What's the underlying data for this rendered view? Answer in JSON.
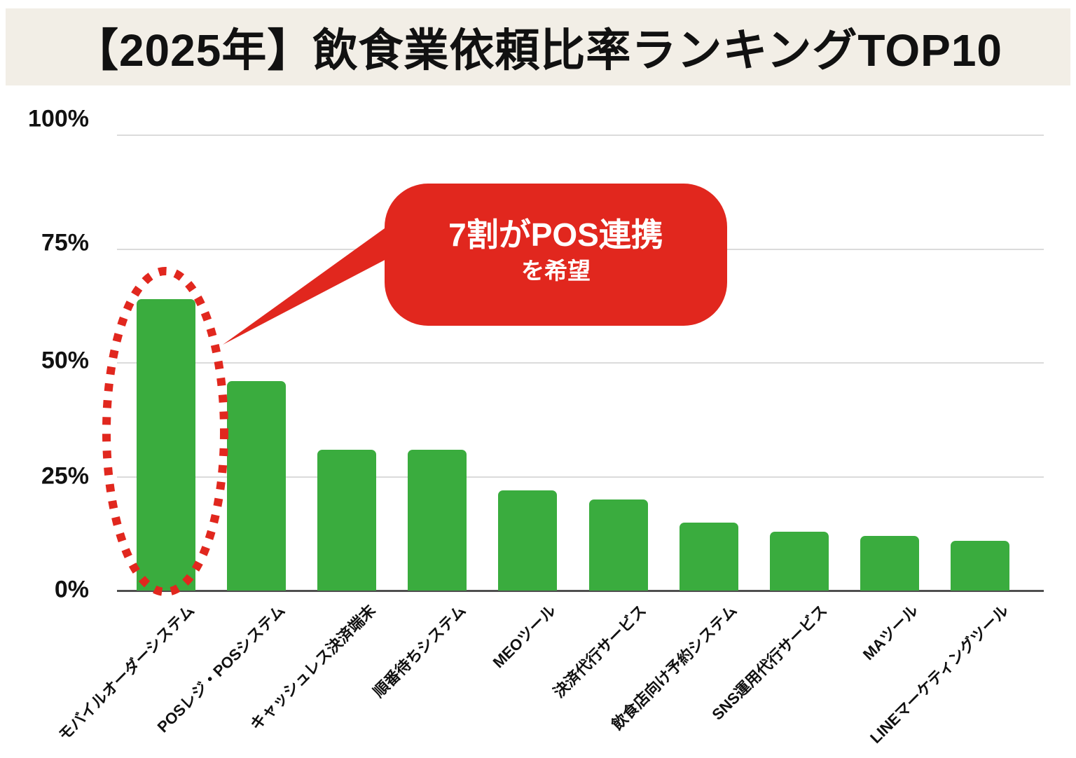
{
  "title": "【2025年】飲食業依頼比率ランキングTOP10",
  "annotation": {
    "line1": "7割がPOS連携",
    "line2": "を希望"
  },
  "colors": {
    "bar_green": "#3AAC3E",
    "accent_red": "#E1271E",
    "title_bg": "#F2EEE6",
    "grid": "#DBDBDB",
    "axis": "#4F4F4F",
    "text": "#111111"
  },
  "chart_data": {
    "type": "bar",
    "title": "【2025年】飲食業依頼比率ランキングTOP10",
    "categories": [
      "モバイルオーダーシステム",
      "POSレジ・POSシステム",
      "キャッシュレス決済端末",
      "順番待ちシステム",
      "MEOツール",
      "決済代行サービス",
      "飲食店向け予約システム",
      "SNS運用代行サービス",
      "MAツール",
      "LINEマーケティングツール"
    ],
    "values": [
      64,
      46,
      31,
      31,
      22,
      20,
      15,
      13,
      12,
      11
    ],
    "unit": "%",
    "xlabel": "",
    "ylabel": "",
    "y_ticks": [
      "0%",
      "25%",
      "50%",
      "75%",
      "100%"
    ],
    "ylim": [
      0,
      100
    ],
    "grid": true,
    "legend": false,
    "annotation_text": "7割がPOS連携を希望",
    "highlight": {
      "index": 0,
      "style": "red dotted ellipse around first bar"
    }
  }
}
